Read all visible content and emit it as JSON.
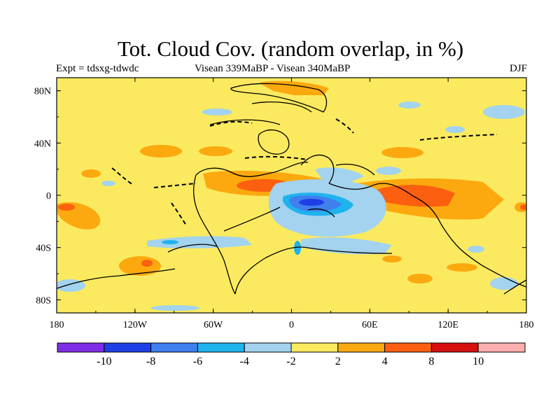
{
  "title": "Tot. Cloud Cov. (random overlap, in %)",
  "subtitle_left": "Expt = tdsxg-tdwdc",
  "subtitle_center": "Visean 339MaBP - Visean  340MaBP",
  "subtitle_right": "DJF",
  "x_ticks": [
    "180",
    "120W",
    "60W",
    "0",
    "60E",
    "120E",
    "180"
  ],
  "y_ticks": [
    "80N",
    "40N",
    "0",
    "40S",
    "80S"
  ],
  "colorbar": {
    "colors": [
      "#7f2fe6",
      "#1f3fe6",
      "#3f7fee",
      "#1fb3ee",
      "#a3d3ee",
      "#fbea5f",
      "#fba90f",
      "#fb5f0f",
      "#d70f0f",
      "#fbaeae"
    ],
    "labels": [
      "-10",
      "-8",
      "-6",
      "-4",
      "-2",
      "2",
      "4",
      "8",
      "10"
    ]
  },
  "map": {
    "lon_range": [
      -180,
      180
    ],
    "lat_range": [
      -90,
      90
    ],
    "background_color": "#fbea5f"
  }
}
